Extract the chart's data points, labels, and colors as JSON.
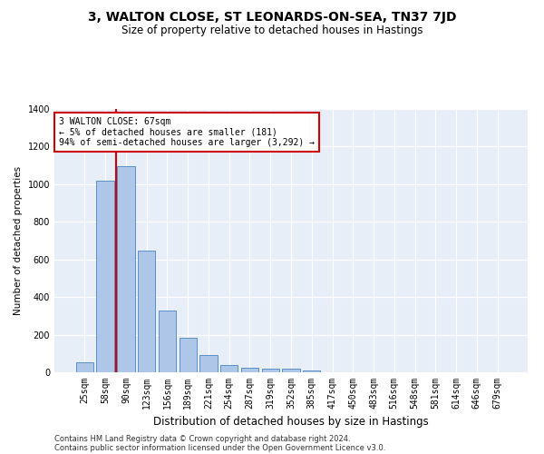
{
  "title": "3, WALTON CLOSE, ST LEONARDS-ON-SEA, TN37 7JD",
  "subtitle": "Size of property relative to detached houses in Hastings",
  "xlabel": "Distribution of detached houses by size in Hastings",
  "ylabel": "Number of detached properties",
  "bar_labels": [
    "25sqm",
    "58sqm",
    "90sqm",
    "123sqm",
    "156sqm",
    "189sqm",
    "221sqm",
    "254sqm",
    "287sqm",
    "319sqm",
    "352sqm",
    "385sqm",
    "417sqm",
    "450sqm",
    "483sqm",
    "516sqm",
    "548sqm",
    "581sqm",
    "614sqm",
    "646sqm",
    "679sqm"
  ],
  "bar_values": [
    55,
    1020,
    1095,
    645,
    330,
    185,
    90,
    40,
    25,
    20,
    20,
    12,
    0,
    0,
    0,
    0,
    0,
    0,
    0,
    0,
    0
  ],
  "bar_color": "#aec6e8",
  "bar_edge_color": "#5b8fc9",
  "vline_x": 1.5,
  "vline_color": "#cc0000",
  "annotation_text": "3 WALTON CLOSE: 67sqm\n← 5% of detached houses are smaller (181)\n94% of semi-detached houses are larger (3,292) →",
  "annotation_box_color": "#ffffff",
  "annotation_box_edge": "#cc0000",
  "ylim": [
    0,
    1400
  ],
  "yticks": [
    0,
    200,
    400,
    600,
    800,
    1000,
    1200,
    1400
  ],
  "plot_bg_color": "#e8eef7",
  "footer_line1": "Contains HM Land Registry data © Crown copyright and database right 2024.",
  "footer_line2": "Contains public sector information licensed under the Open Government Licence v3.0.",
  "title_fontsize": 10,
  "subtitle_fontsize": 8.5,
  "xlabel_fontsize": 8.5,
  "ylabel_fontsize": 7.5,
  "tick_fontsize": 7,
  "footer_fontsize": 6
}
